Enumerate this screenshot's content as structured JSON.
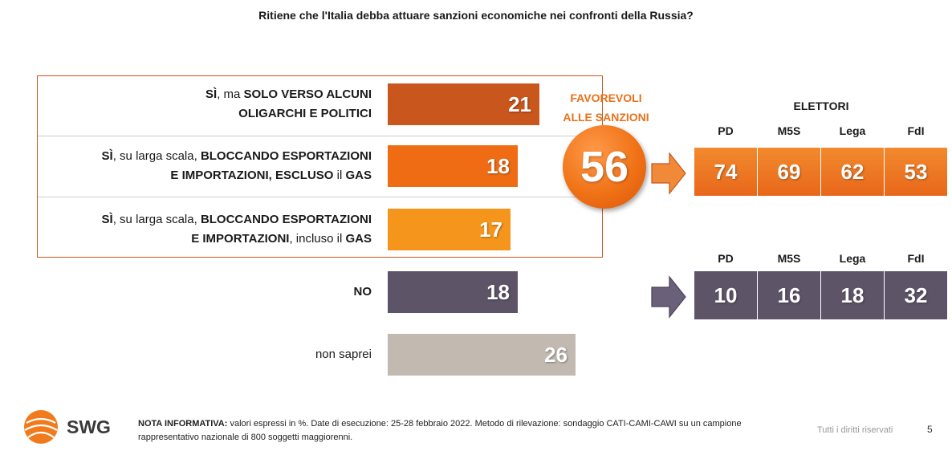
{
  "title": "Ritiene che l'Italia debba attuare sanzioni economiche nei confronti della Russia?",
  "chart_data": [
    {
      "type": "bar",
      "orientation": "horizontal",
      "categories": [
        "SÌ, ma SOLO VERSO ALCUNI OLIGARCHI E POLITICI",
        "SÌ, su larga scala, BLOCCANDO ESPORTAZIONI E IMPORTAZIONI, ESCLUSO il GAS",
        "SÌ, su larga scala, BLOCCANDO ESPORTAZIONI E IMPORTAZIONI, incluso il GAS",
        "NO",
        "non saprei"
      ],
      "values": [
        21,
        18,
        17,
        18,
        26
      ],
      "colors": [
        "#c9561d",
        "#ef6c14",
        "#f5951c",
        "#5e5468",
        "#c2b9b1"
      ],
      "unit": "%",
      "xlim": [
        0,
        26
      ]
    },
    {
      "type": "table",
      "title": "ELETTORI",
      "columns": [
        "PD",
        "M5S",
        "Lega",
        "FdI"
      ],
      "rows": [
        {
          "label": "FAVOREVOLI ALLE SANZIONI",
          "values": [
            74,
            69,
            62,
            53
          ]
        },
        {
          "label": "NO",
          "values": [
            10,
            16,
            18,
            32
          ]
        }
      ]
    }
  ],
  "bars": [
    {
      "parts": [
        {
          "t": "SÌ",
          "b": true
        },
        {
          "t": ", ma ",
          "b": false
        },
        {
          "t": "SOLO VERSO ALCUNI",
          "b": true
        },
        {
          "br": true
        },
        {
          "t": "OLIGARCHI E POLITICI",
          "b": true
        }
      ]
    },
    {
      "parts": [
        {
          "t": "SÌ",
          "b": true
        },
        {
          "t": ", su larga scala, ",
          "b": false
        },
        {
          "t": "BLOCCANDO ESPORTAZIONI",
          "b": true
        },
        {
          "br": true
        },
        {
          "t": "E IMPORTAZIONI, ESCLUSO",
          "b": true
        },
        {
          "t": " il ",
          "b": false
        },
        {
          "t": "GAS",
          "b": true
        }
      ]
    },
    {
      "parts": [
        {
          "t": "SÌ",
          "b": true
        },
        {
          "t": ", su larga scala, ",
          "b": false
        },
        {
          "t": "BLOCCANDO ESPORTAZIONI",
          "b": true
        },
        {
          "br": true
        },
        {
          "t": "E IMPORTAZIONI",
          "b": true
        },
        {
          "t": ", incluso il ",
          "b": false
        },
        {
          "t": "GAS",
          "b": true
        }
      ]
    },
    {
      "parts": [
        {
          "t": "NO",
          "b": true
        }
      ]
    },
    {
      "parts": [
        {
          "t": "non saprei",
          "b": false
        }
      ]
    }
  ],
  "favorevoli": {
    "label_line1": "FAVOREVOLI",
    "label_line2": "ALLE SANZIONI",
    "value": "56"
  },
  "elettori_label": "ELETTORI",
  "parties": [
    "PD",
    "M5S",
    "Lega",
    "FdI"
  ],
  "favorevoli_row": [
    "74",
    "69",
    "62",
    "53"
  ],
  "no_row": [
    "10",
    "16",
    "18",
    "32"
  ],
  "footer": {
    "brand": "SWG",
    "nota_label": "NOTA INFORMATIVA:",
    "nota_text": "valori espressi in %. Date di esecuzione: 25-28 febbraio 2022. Metodo di rilevazione: sondaggio CATI-CAMI-CAWI su un campione rappresentativo nazionale di 800 soggetti maggiorenni.",
    "rights": "Tutti i diritti riservati",
    "page": "5"
  },
  "colors": {
    "accent_orange": "#e8711a",
    "no_purple": "#5e5468",
    "frame": "#c9561d"
  }
}
